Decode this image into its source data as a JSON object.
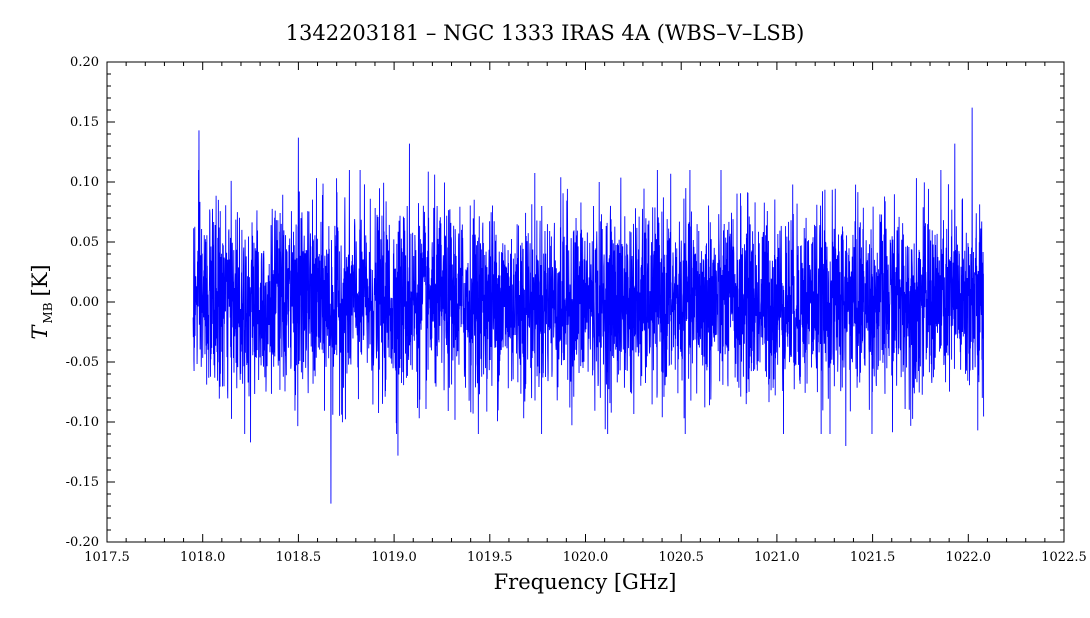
{
  "chart_data": {
    "type": "line",
    "title": "1342203181 – NGC 1333 IRAS 4A (WBS–V–LSB)",
    "xlabel": "Frequency [GHz]",
    "ylabel": {
      "symbol": "T",
      "subscript": "MB",
      "unit": "[K]"
    },
    "xlim": [
      1017.5,
      1022.5
    ],
    "ylim": [
      -0.2,
      0.2
    ],
    "x_ticks": [
      "1017.5",
      "1018.0",
      "1018.5",
      "1019.0",
      "1019.5",
      "1020.0",
      "1020.5",
      "1021.0",
      "1021.5",
      "1022.0",
      "1022.5"
    ],
    "y_ticks": [
      "-0.20",
      "-0.15",
      "-0.10",
      "-0.05",
      "0.00",
      "0.05",
      "0.10",
      "0.15",
      "0.20"
    ],
    "grid": false,
    "series": [
      {
        "color": "#0000ff",
        "x_range": [
          1017.95,
          1022.08
        ],
        "noise_std": 0.038,
        "extremes": [
          {
            "x": 1017.98,
            "y": 0.143
          },
          {
            "x": 1018.67,
            "y": -0.168
          },
          {
            "x": 1018.5,
            "y": 0.137
          },
          {
            "x": 1019.02,
            "y": -0.128
          },
          {
            "x": 1019.08,
            "y": 0.132
          },
          {
            "x": 1021.36,
            "y": -0.12
          },
          {
            "x": 1022.02,
            "y": 0.162
          },
          {
            "x": 1021.93,
            "y": 0.132
          },
          {
            "x": 1022.05,
            "y": -0.107
          },
          {
            "x": 1018.25,
            "y": -0.117
          }
        ]
      }
    ]
  }
}
